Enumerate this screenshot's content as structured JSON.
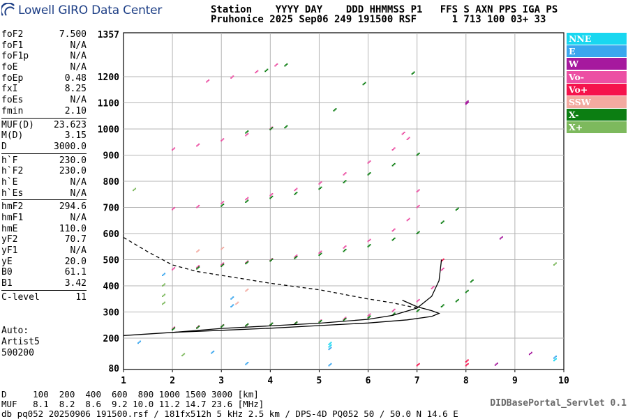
{
  "logo": {
    "text": "Lowell GIRO Data Center",
    "icon": "giro-logo-icon"
  },
  "header": {
    "line1": "Station    YYYY DAY    DDD HHMMSS P1   FFS S AXN PPS IGA PS",
    "line2": "Pruhonice 2025 Sep06 249 191500 RSF      1 713 100 03+ 33"
  },
  "params": [
    [
      {
        "label": "foF2",
        "value": "7.500"
      },
      {
        "label": "foF1",
        "value": "N/A"
      },
      {
        "label": "foF1p",
        "value": "N/A"
      },
      {
        "label": "foE",
        "value": "N/A"
      },
      {
        "label": "foEp",
        "value": "0.48"
      },
      {
        "label": "fxI",
        "value": "8.25"
      },
      {
        "label": "foEs",
        "value": "N/A"
      },
      {
        "label": "fmin",
        "value": "2.10"
      }
    ],
    [
      {
        "label": "MUF(D)",
        "value": "23.623"
      },
      {
        "label": "M(D)",
        "value": "3.15"
      },
      {
        "label": "D",
        "value": "3000.0"
      }
    ],
    [
      {
        "label": "h`F",
        "value": "230.0"
      },
      {
        "label": "h`F2",
        "value": "230.0"
      },
      {
        "label": "h`E",
        "value": "N/A"
      },
      {
        "label": "h`Es",
        "value": "N/A"
      }
    ],
    [
      {
        "label": "hmF2",
        "value": "294.6"
      },
      {
        "label": "hmF1",
        "value": "N/A"
      },
      {
        "label": "hmE",
        "value": "110.0"
      },
      {
        "label": "yF2",
        "value": "70.7"
      },
      {
        "label": "yF1",
        "value": "N/A"
      },
      {
        "label": "yE",
        "value": "20.0"
      },
      {
        "label": "B0",
        "value": "61.1"
      },
      {
        "label": "B1",
        "value": "3.42"
      }
    ],
    [
      {
        "label": "C-level",
        "value": "11"
      }
    ]
  ],
  "auto": {
    "line1": "Auto:",
    "line2": "Artist5",
    "line3": "500200"
  },
  "legend": [
    {
      "label": "NNE",
      "color": "#19d7f0"
    },
    {
      "label": "E",
      "color": "#3aa6ee"
    },
    {
      "label": "W",
      "color": "#a6199e"
    },
    {
      "label": "Vo-",
      "color": "#ec4fa3"
    },
    {
      "label": "Vo+",
      "color": "#f5134c"
    },
    {
      "label": "SSW",
      "color": "#f3aaa0"
    },
    {
      "label": "X-",
      "color": "#0c7e12"
    },
    {
      "label": "X+",
      "color": "#7db95d"
    }
  ],
  "footer": {
    "line1": "D     100  200  400  600  800 1000 1500 3000 [km]",
    "line2": "MUF   8.1  8.2  8.6  9.2 10.0 11.2 14.7 23.6 [MHz]",
    "line3": "db pq052 20250906 191500.rsf / 181fx512h 5 kHz 2.5 km / DPS-4D PQ052 50 / 50.0 N 14.6 E"
  },
  "servlet": "DIDBasePortal_Servlet 0.1",
  "chart_data": {
    "type": "scatter",
    "xlim": [
      1,
      10
    ],
    "ylim": [
      80,
      1357
    ],
    "x_ticks": [
      "1",
      "2",
      "3",
      "4",
      "5",
      "6",
      "7",
      "8",
      "9",
      "10"
    ],
    "y_ticks": [
      "80",
      "200",
      "300",
      "400",
      "500",
      "600",
      "700",
      "800",
      "900",
      "1000",
      "1100",
      "1200",
      "1357"
    ],
    "grid": true,
    "series": [
      {
        "name": "Vo-",
        "color": "#ec4fa3",
        "points": [
          [
            2.0,
            235
          ],
          [
            2.5,
            240
          ],
          [
            3.0,
            244
          ],
          [
            3.5,
            247
          ],
          [
            4.0,
            250
          ],
          [
            4.5,
            255
          ],
          [
            5.0,
            262
          ],
          [
            5.5,
            272
          ],
          [
            6.0,
            285
          ],
          [
            6.5,
            303
          ],
          [
            7.0,
            340
          ],
          [
            7.3,
            390
          ],
          [
            7.5,
            460
          ],
          [
            2.0,
            462
          ],
          [
            2.5,
            470
          ],
          [
            3.0,
            480
          ],
          [
            3.5,
            488
          ],
          [
            4.0,
            497
          ],
          [
            4.5,
            510
          ],
          [
            5.0,
            525
          ],
          [
            5.5,
            545
          ],
          [
            6.0,
            570
          ],
          [
            6.5,
            610
          ],
          [
            6.8,
            650
          ],
          [
            7.0,
            700
          ],
          [
            2.0,
            692
          ],
          [
            2.5,
            700
          ],
          [
            3.0,
            715
          ],
          [
            3.5,
            730
          ],
          [
            4.0,
            745
          ],
          [
            4.5,
            765
          ],
          [
            5.0,
            790
          ],
          [
            5.5,
            825
          ],
          [
            6.0,
            870
          ],
          [
            6.5,
            920
          ],
          [
            6.8,
            960
          ],
          [
            2.0,
            920
          ],
          [
            2.5,
            935
          ],
          [
            3.0,
            955
          ],
          [
            3.5,
            975
          ],
          [
            4.0,
            1000
          ],
          [
            2.7,
            1180
          ],
          [
            3.2,
            1195
          ],
          [
            3.7,
            1215
          ],
          [
            4.1,
            1240
          ],
          [
            6.7,
            980
          ],
          [
            7.0,
            760
          ]
        ]
      },
      {
        "name": "X-",
        "color": "#0c7e12",
        "points": [
          [
            2.0,
            232
          ],
          [
            2.5,
            238
          ],
          [
            3.0,
            243
          ],
          [
            3.5,
            247
          ],
          [
            4.0,
            250
          ],
          [
            4.5,
            254
          ],
          [
            5.0,
            260
          ],
          [
            5.5,
            268
          ],
          [
            6.0,
            277
          ],
          [
            6.5,
            288
          ],
          [
            7.0,
            302
          ],
          [
            7.5,
            320
          ],
          [
            7.8,
            340
          ],
          [
            8.0,
            375
          ],
          [
            8.1,
            415
          ],
          [
            2.5,
            465
          ],
          [
            3.0,
            475
          ],
          [
            3.5,
            485
          ],
          [
            4.0,
            495
          ],
          [
            4.5,
            505
          ],
          [
            5.0,
            517
          ],
          [
            5.5,
            532
          ],
          [
            6.0,
            550
          ],
          [
            6.5,
            575
          ],
          [
            7.0,
            600
          ],
          [
            7.5,
            640
          ],
          [
            7.8,
            690
          ],
          [
            3.0,
            705
          ],
          [
            3.5,
            720
          ],
          [
            4.0,
            735
          ],
          [
            4.5,
            750
          ],
          [
            5.0,
            770
          ],
          [
            5.5,
            795
          ],
          [
            6.0,
            825
          ],
          [
            6.5,
            860
          ],
          [
            7.0,
            900
          ],
          [
            3.5,
            985
          ],
          [
            4.0,
            998
          ],
          [
            4.3,
            1005
          ],
          [
            3.9,
            1220
          ],
          [
            4.3,
            1240
          ],
          [
            5.3,
            1070
          ],
          [
            5.9,
            1170
          ],
          [
            6.9,
            1210
          ]
        ]
      },
      {
        "name": "E",
        "color": "#3aa6ee",
        "points": [
          [
            1.8,
            440
          ],
          [
            3.2,
            350
          ],
          [
            3.2,
            320
          ],
          [
            5.2,
            155
          ],
          [
            5.2,
            90
          ],
          [
            2.8,
            140
          ],
          [
            3.5,
            95
          ],
          [
            1.3,
            180
          ],
          [
            9.8,
            120
          ]
        ]
      },
      {
        "name": "X+",
        "color": "#7db95d",
        "points": [
          [
            1.8,
            400
          ],
          [
            1.8,
            360
          ],
          [
            1.8,
            330
          ],
          [
            9.8,
            480
          ],
          [
            2.2,
            130
          ],
          [
            1.2,
            765
          ]
        ]
      },
      {
        "name": "SSW",
        "color": "#f3aaa0",
        "points": [
          [
            3.3,
            330
          ],
          [
            3.5,
            380
          ],
          [
            2.5,
            530
          ],
          [
            3.0,
            540
          ]
        ]
      },
      {
        "name": "W",
        "color": "#a6199e",
        "points": [
          [
            8.0,
            1095
          ],
          [
            8.0,
            1100
          ],
          [
            8.7,
            580
          ],
          [
            8.6,
            92
          ],
          [
            9.3,
            135
          ]
        ]
      },
      {
        "name": "Vo+",
        "color": "#f5134c",
        "points": [
          [
            7.5,
            495
          ],
          [
            8.0,
            90
          ],
          [
            8.0,
            105
          ],
          [
            7.0,
            90
          ]
        ]
      },
      {
        "name": "NNE",
        "color": "#19d7f0",
        "points": [
          [
            5.2,
            165
          ],
          [
            5.2,
            175
          ],
          [
            9.8,
            110
          ]
        ]
      }
    ],
    "curves": [
      {
        "name": "profile",
        "style": "solid",
        "points": [
          [
            1.0,
            210
          ],
          [
            2.0,
            222
          ],
          [
            3.0,
            230
          ],
          [
            4.0,
            238
          ],
          [
            5.0,
            248
          ],
          [
            6.0,
            258
          ],
          [
            6.8,
            270
          ],
          [
            7.3,
            283
          ],
          [
            7.45,
            294.6
          ],
          [
            7.3,
            305
          ],
          [
            7.0,
            320
          ],
          [
            6.7,
            345
          ]
        ]
      },
      {
        "name": "virtual-height",
        "style": "solid",
        "points": [
          [
            2.0,
            222
          ],
          [
            3.0,
            237
          ],
          [
            4.0,
            247
          ],
          [
            5.0,
            257
          ],
          [
            6.0,
            272
          ],
          [
            6.5,
            287
          ],
          [
            7.0,
            315
          ],
          [
            7.3,
            360
          ],
          [
            7.45,
            420
          ],
          [
            7.5,
            500
          ]
        ]
      },
      {
        "name": "muf",
        "style": "dashed",
        "points": [
          [
            1.0,
            585
          ],
          [
            1.5,
            530
          ],
          [
            2.0,
            480
          ],
          [
            2.5,
            455
          ],
          [
            3.0,
            440
          ],
          [
            3.5,
            425
          ],
          [
            4.0,
            410
          ],
          [
            5.0,
            385
          ],
          [
            6.0,
            350
          ],
          [
            6.5,
            335
          ],
          [
            7.0,
            315
          ]
        ]
      }
    ]
  }
}
